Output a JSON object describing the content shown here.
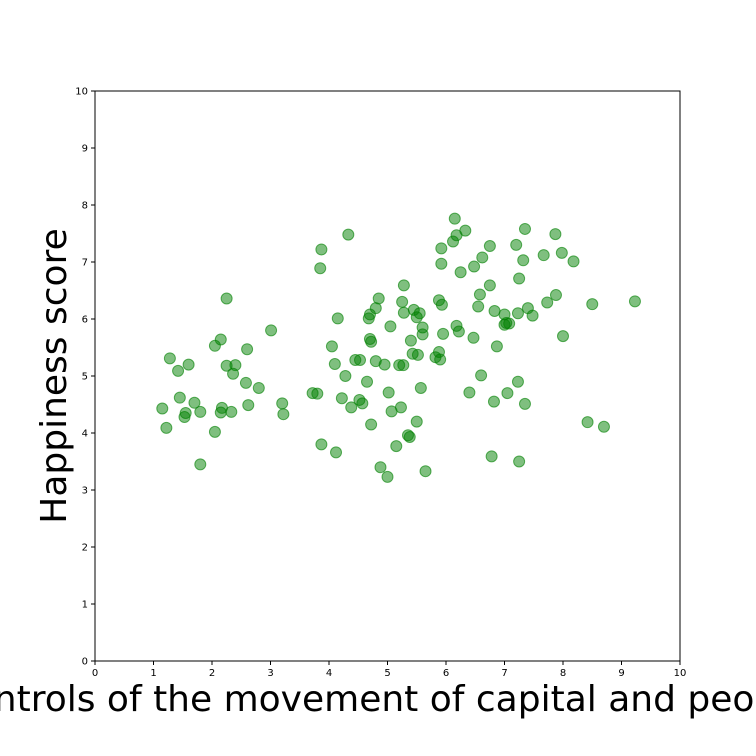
{
  "chart_data": {
    "type": "scatter",
    "title": "",
    "xlabel": "Controls of the movement of capital and people",
    "ylabel": "Happiness score",
    "xlim": [
      0,
      10
    ],
    "ylim": [
      0,
      10
    ],
    "xticks": [
      "0",
      "1",
      "2",
      "3",
      "4",
      "5",
      "6",
      "7",
      "8",
      "9",
      "10"
    ],
    "yticks": [
      "0",
      "1",
      "2",
      "3",
      "4",
      "5",
      "6",
      "7",
      "8",
      "9",
      "10"
    ],
    "grid": false,
    "color": "#008000",
    "series": [
      {
        "points": [
          [
            1.15,
            4.43
          ],
          [
            1.22,
            4.09
          ],
          [
            1.28,
            5.31
          ],
          [
            1.42,
            5.09
          ],
          [
            1.45,
            4.62
          ],
          [
            1.53,
            4.28
          ],
          [
            1.55,
            4.35
          ],
          [
            1.6,
            5.2
          ],
          [
            1.7,
            4.53
          ],
          [
            1.8,
            3.45
          ],
          [
            1.8,
            4.37
          ],
          [
            2.05,
            4.02
          ],
          [
            2.05,
            5.53
          ],
          [
            2.15,
            5.64
          ],
          [
            2.15,
            4.36
          ],
          [
            2.17,
            4.44
          ],
          [
            2.25,
            6.36
          ],
          [
            2.25,
            5.18
          ],
          [
            2.33,
            4.37
          ],
          [
            2.36,
            5.04
          ],
          [
            2.4,
            5.19
          ],
          [
            2.58,
            4.88
          ],
          [
            2.6,
            5.47
          ],
          [
            2.62,
            4.49
          ],
          [
            2.8,
            4.79
          ],
          [
            3.01,
            5.8
          ],
          [
            3.2,
            4.52
          ],
          [
            3.22,
            4.33
          ],
          [
            3.72,
            4.7
          ],
          [
            3.8,
            4.69
          ],
          [
            3.85,
            6.89
          ],
          [
            3.87,
            7.22
          ],
          [
            3.87,
            3.8
          ],
          [
            4.05,
            5.52
          ],
          [
            4.1,
            5.21
          ],
          [
            4.12,
            3.66
          ],
          [
            4.15,
            6.01
          ],
          [
            4.22,
            4.61
          ],
          [
            4.28,
            5.0
          ],
          [
            4.33,
            7.48
          ],
          [
            4.38,
            4.45
          ],
          [
            4.45,
            5.28
          ],
          [
            4.52,
            4.58
          ],
          [
            4.53,
            5.28
          ],
          [
            4.57,
            4.52
          ],
          [
            4.65,
            4.9
          ],
          [
            4.68,
            6.01
          ],
          [
            4.7,
            6.08
          ],
          [
            4.7,
            5.65
          ],
          [
            4.72,
            5.6
          ],
          [
            4.72,
            4.15
          ],
          [
            4.8,
            6.19
          ],
          [
            4.8,
            5.26
          ],
          [
            4.85,
            6.36
          ],
          [
            4.88,
            3.4
          ],
          [
            4.95,
            5.2
          ],
          [
            5.0,
            3.23
          ],
          [
            5.02,
            4.71
          ],
          [
            5.05,
            5.87
          ],
          [
            5.07,
            4.38
          ],
          [
            5.15,
            3.77
          ],
          [
            5.2,
            5.19
          ],
          [
            5.23,
            4.45
          ],
          [
            5.25,
            6.3
          ],
          [
            5.27,
            5.19
          ],
          [
            5.28,
            6.59
          ],
          [
            5.28,
            6.11
          ],
          [
            5.35,
            3.96
          ],
          [
            5.38,
            3.93
          ],
          [
            5.4,
            5.62
          ],
          [
            5.43,
            5.39
          ],
          [
            5.45,
            6.16
          ],
          [
            5.5,
            4.2
          ],
          [
            5.5,
            6.03
          ],
          [
            5.52,
            5.37
          ],
          [
            5.55,
            6.1
          ],
          [
            5.57,
            4.79
          ],
          [
            5.6,
            5.73
          ],
          [
            5.6,
            5.85
          ],
          [
            5.65,
            3.33
          ],
          [
            5.82,
            5.33
          ],
          [
            5.88,
            5.42
          ],
          [
            5.88,
            6.33
          ],
          [
            5.9,
            5.29
          ],
          [
            5.92,
            6.97
          ],
          [
            5.92,
            7.24
          ],
          [
            5.93,
            6.25
          ],
          [
            5.95,
            5.74
          ],
          [
            6.12,
            7.36
          ],
          [
            6.15,
            7.76
          ],
          [
            6.18,
            7.47
          ],
          [
            6.18,
            5.88
          ],
          [
            6.22,
            5.78
          ],
          [
            6.25,
            6.82
          ],
          [
            6.33,
            7.55
          ],
          [
            6.4,
            4.71
          ],
          [
            6.47,
            5.67
          ],
          [
            6.48,
            6.92
          ],
          [
            6.55,
            6.22
          ],
          [
            6.58,
            6.43
          ],
          [
            6.6,
            5.01
          ],
          [
            6.62,
            7.08
          ],
          [
            6.75,
            7.28
          ],
          [
            6.75,
            6.59
          ],
          [
            6.78,
            3.59
          ],
          [
            6.82,
            4.55
          ],
          [
            6.83,
            6.14
          ],
          [
            6.87,
            5.52
          ],
          [
            7.0,
            6.08
          ],
          [
            7.0,
            5.9
          ],
          [
            7.03,
            5.93
          ],
          [
            7.05,
            4.7
          ],
          [
            7.08,
            5.92
          ],
          [
            7.2,
            7.3
          ],
          [
            7.23,
            6.1
          ],
          [
            7.23,
            4.9
          ],
          [
            7.25,
            6.71
          ],
          [
            7.25,
            3.5
          ],
          [
            7.32,
            7.03
          ],
          [
            7.35,
            7.58
          ],
          [
            7.35,
            4.51
          ],
          [
            7.4,
            6.19
          ],
          [
            7.48,
            6.06
          ],
          [
            7.67,
            7.12
          ],
          [
            7.73,
            6.29
          ],
          [
            7.87,
            7.49
          ],
          [
            7.88,
            6.42
          ],
          [
            7.98,
            7.16
          ],
          [
            8.0,
            5.7
          ],
          [
            8.18,
            7.01
          ],
          [
            8.42,
            4.19
          ],
          [
            8.5,
            6.26
          ],
          [
            8.7,
            4.11
          ],
          [
            9.23,
            6.31
          ]
        ]
      }
    ]
  }
}
